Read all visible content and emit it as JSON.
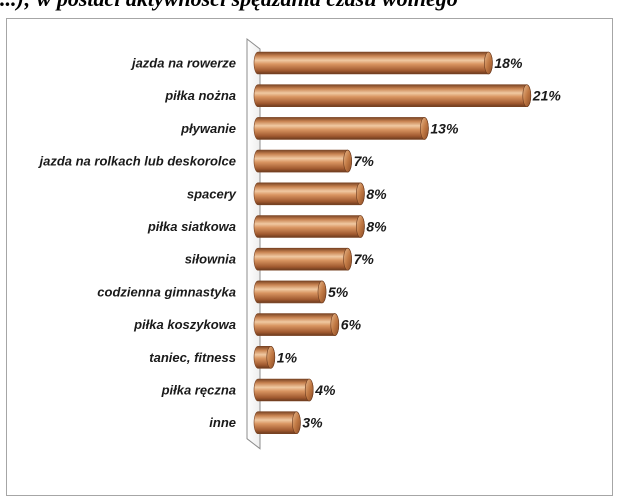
{
  "caption": "...); w postaci aktywności spędzania czasu wolnego",
  "chart_data": {
    "type": "bar",
    "orientation": "horizontal",
    "style": "3d-cylinder",
    "bar_color": "#d08a55",
    "value_suffix": "%",
    "xlim": [
      0,
      22
    ],
    "grid": false,
    "legend": "none",
    "categories": [
      "jazda na rowerze",
      "piłka nożna",
      "pływanie",
      "jazda na rolkach lub deskorolce",
      "spacery",
      "piłka siatkowa",
      "siłownia",
      "codzienna gimnastyka",
      "piłka koszykowa",
      "taniec, fitness",
      "piłka ręczna",
      "inne"
    ],
    "values": [
      18,
      21,
      13,
      7,
      8,
      8,
      7,
      5,
      6,
      1,
      4,
      3
    ],
    "data_labels": [
      "18%",
      "21%",
      "13%",
      "7%",
      "8%",
      "8%",
      "7%",
      "5%",
      "6%",
      "1%",
      "4%",
      "3%"
    ]
  }
}
